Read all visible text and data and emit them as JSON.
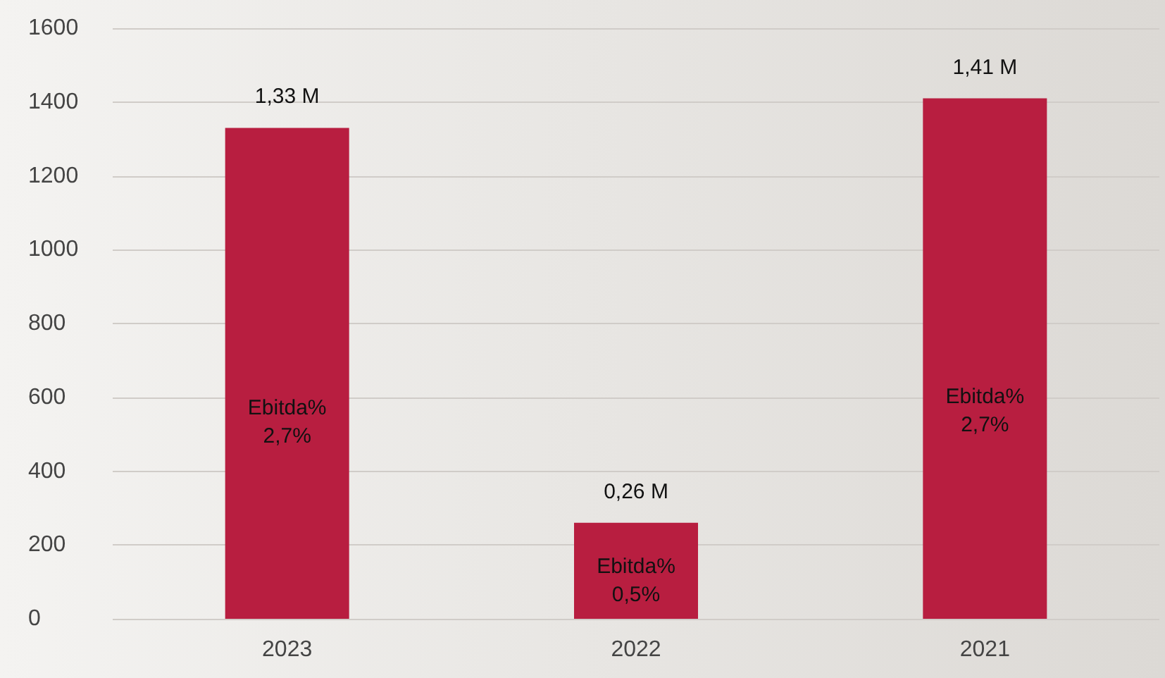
{
  "chart_data": {
    "type": "bar",
    "categories": [
      "2023",
      "2022",
      "2021"
    ],
    "values": [
      1330,
      260,
      1410
    ],
    "color": "#b81e40",
    "annotations": [
      {
        "text": "1,33 M",
        "x": "2023",
        "y": 1330
      },
      {
        "text": "0,26 M",
        "x": "2022",
        "y": 260
      },
      {
        "text": "1,41 M",
        "x": "2021",
        "y": 1410
      },
      "Ebitda%\n2,7%",
      "Ebitda%\n0,5%",
      "Ebitda%\n2,7%"
    ],
    "ylim": [
      0,
      1600
    ],
    "yticks": [
      0,
      200,
      400,
      600,
      800,
      1000,
      1200,
      1400,
      1600
    ],
    "grid": "y"
  }
}
